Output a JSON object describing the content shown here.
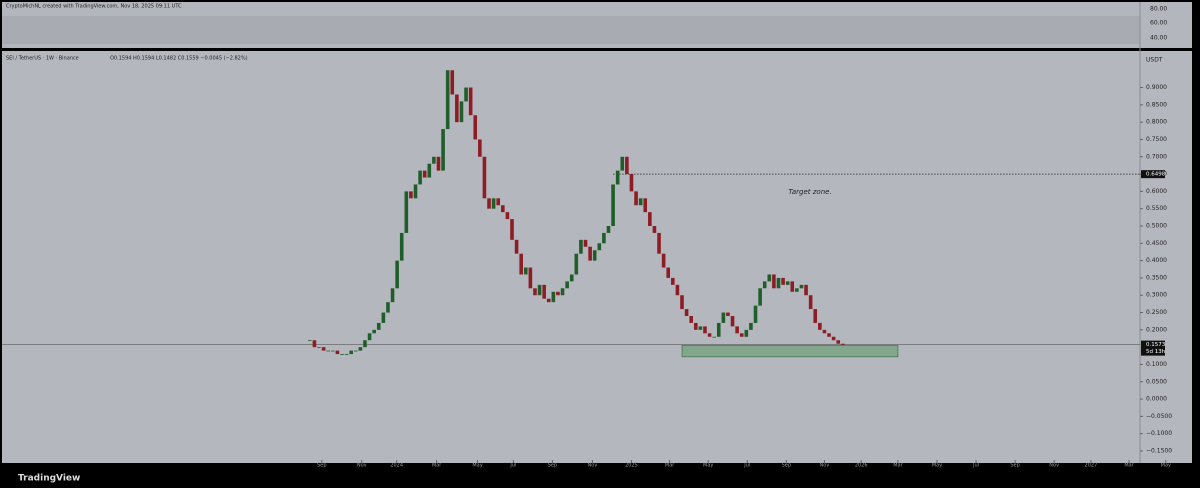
{
  "header": {
    "credit": "CryptoMichNL created with TradingView.com, Nov 18, 2025 09:11 UTC",
    "legend": "SEI / TetherUS · 1W · Binance",
    "ohlc": "O0.1594 H0.1594 L0.1482 C0.1559 −0.0045 (−2.82%)"
  },
  "rsi_axis": [
    "80.00",
    "60.00",
    "40.00"
  ],
  "footer": {
    "brand": "TradingView"
  },
  "chart_data": {
    "type": "candlestick",
    "currency": "USDT",
    "closes": [
      0.17,
      0.15,
      0.15,
      0.14,
      0.14,
      0.14,
      0.13,
      0.13,
      0.13,
      0.14,
      0.14,
      0.15,
      0.17,
      0.19,
      0.2,
      0.22,
      0.25,
      0.28,
      0.32,
      0.4,
      0.48,
      0.6,
      0.58,
      0.62,
      0.66,
      0.64,
      0.68,
      0.7,
      0.66,
      0.78,
      0.95,
      0.88,
      0.8,
      0.86,
      0.9,
      0.82,
      0.75,
      0.7,
      0.58,
      0.55,
      0.58,
      0.56,
      0.54,
      0.52,
      0.46,
      0.42,
      0.36,
      0.38,
      0.32,
      0.3,
      0.33,
      0.29,
      0.28,
      0.31,
      0.3,
      0.32,
      0.34,
      0.36,
      0.42,
      0.46,
      0.44,
      0.4,
      0.43,
      0.45,
      0.48,
      0.5,
      0.62,
      0.66,
      0.7,
      0.65,
      0.6,
      0.56,
      0.58,
      0.54,
      0.5,
      0.48,
      0.42,
      0.38,
      0.35,
      0.33,
      0.3,
      0.26,
      0.24,
      0.22,
      0.2,
      0.21,
      0.19,
      0.18,
      0.18,
      0.22,
      0.25,
      0.24,
      0.21,
      0.19,
      0.18,
      0.2,
      0.22,
      0.27,
      0.32,
      0.34,
      0.36,
      0.32,
      0.35,
      0.33,
      0.34,
      0.31,
      0.32,
      0.33,
      0.3,
      0.26,
      0.22,
      0.2,
      0.19,
      0.18,
      0.17,
      0.16,
      0.157
    ],
    "up_color": "#1f5e2a",
    "down_color": "#8e1c24",
    "xlim": [
      -67,
      192
    ],
    "xticks": [
      {
        "value": 2.6,
        "label": "Sep"
      },
      {
        "value": 11.3,
        "label": "Nov"
      },
      {
        "value": 18.9,
        "label": "2024"
      },
      {
        "value": 27.6,
        "label": "Mar"
      },
      {
        "value": 36.5,
        "label": "May"
      },
      {
        "value": 44.3,
        "label": "Jul"
      },
      {
        "value": 52.8,
        "label": "Sep"
      },
      {
        "value": 61.5,
        "label": "Nov"
      },
      {
        "value": 70,
        "label": "2025"
      },
      {
        "value": 78.3,
        "label": "Mar"
      },
      {
        "value": 86.7,
        "label": "May"
      },
      {
        "value": 95.2,
        "label": "Jul"
      },
      {
        "value": 103.7,
        "label": "Sep"
      },
      {
        "value": 112,
        "label": "Nov"
      },
      {
        "value": 120,
        "label": "2026"
      },
      {
        "value": 128,
        "label": "Mar"
      },
      {
        "value": 136.5,
        "label": "May"
      },
      {
        "value": 145,
        "label": "Jul"
      },
      {
        "value": 153.5,
        "label": "Sep"
      },
      {
        "value": 162,
        "label": "Nov"
      },
      {
        "value": 170,
        "label": "2027"
      },
      {
        "value": 178.3,
        "label": "Mar"
      },
      {
        "value": 186.3,
        "label": "May"
      }
    ],
    "ylim": [
      -0.176,
      0.994
    ],
    "yticks": [
      {
        "value": 0.9,
        "label": "0.9000"
      },
      {
        "value": 0.85,
        "label": "0.8500"
      },
      {
        "value": 0.8,
        "label": "0.8000"
      },
      {
        "value": 0.75,
        "label": "0.7500"
      },
      {
        "value": 0.7,
        "label": "0.7000"
      },
      {
        "value": 0.65,
        "label": "0.6500"
      },
      {
        "value": 0.6,
        "label": "0.6000"
      },
      {
        "value": 0.55,
        "label": "0.5500"
      },
      {
        "value": 0.5,
        "label": "0.5000"
      },
      {
        "value": 0.45,
        "label": "0.4500"
      },
      {
        "value": 0.4,
        "label": "0.4000"
      },
      {
        "value": 0.35,
        "label": "0.3500"
      },
      {
        "value": 0.3,
        "label": "0.3000"
      },
      {
        "value": 0.25,
        "label": "0.2500"
      },
      {
        "value": 0.2,
        "label": "0.2000"
      },
      {
        "value": 0.1,
        "label": "0.1000"
      },
      {
        "value": 0.05,
        "label": "0.0500"
      },
      {
        "value": 0,
        "label": "0.0000"
      },
      {
        "value": -0.05,
        "label": "−0.0500"
      },
      {
        "value": -0.1,
        "label": "−0.1000"
      },
      {
        "value": -0.15,
        "label": "−0.1500"
      }
    ],
    "target": {
      "value": 0.6498,
      "label": "0.6498",
      "text": "Target zone."
    },
    "last_price": {
      "value": 0.1573,
      "label": "0.1573",
      "countdown": "5d 13h"
    },
    "zone": {
      "low": 0.122,
      "high": 0.155,
      "from": 81,
      "to": 128
    }
  }
}
